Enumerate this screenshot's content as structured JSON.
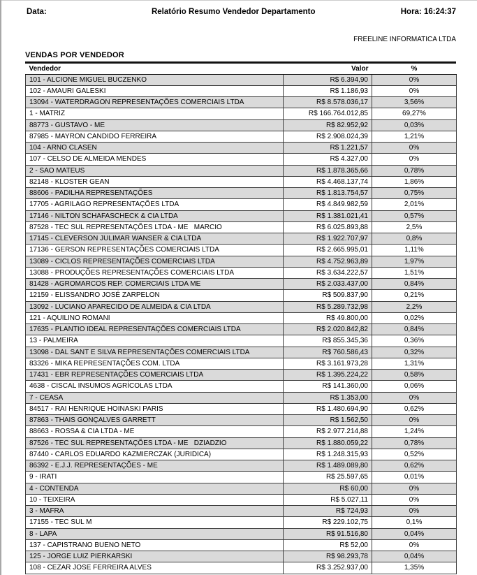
{
  "header": {
    "date_label": "Data:",
    "title": "Relatório Resumo Vendedor Departamento",
    "time": "Hora: 16:24:37",
    "company": "FREELINE INFORMATICA LTDA"
  },
  "section": {
    "title": "VENDAS POR VENDEDOR"
  },
  "table": {
    "columns": [
      "Vendedor",
      "Valor",
      "%"
    ],
    "rows": [
      [
        "101 - ALCIONE MIGUEL BUCZENKO",
        "R$ 6.394,90",
        "0%"
      ],
      [
        "102 - AMAURI GALESKI",
        "R$ 1.186,93",
        "0%"
      ],
      [
        "13094 - WATERDRAGON REPRESENTAÇÕES COMERCIAIS LTDA",
        "R$ 8.578.036,17",
        "3,56%"
      ],
      [
        "1 - MATRIZ",
        "R$ 166.764.012,85",
        "69,27%"
      ],
      [
        "88773 - GUSTAVO - ME",
        "R$ 82.952,92",
        "0,03%"
      ],
      [
        "87985 - MAYRON CANDIDO FERREIRA",
        "R$ 2.908.024,39",
        "1,21%"
      ],
      [
        "104 - ARNO CLASEN",
        "R$ 1.221,57",
        "0%"
      ],
      [
        "107 - CELSO DE ALMEIDA MENDES",
        "R$ 4.327,00",
        "0%"
      ],
      [
        "2 - SAO MATEUS",
        "R$ 1.878.365,66",
        "0,78%"
      ],
      [
        "82148 - KLOSTER GEAN",
        "R$ 4.468.137,74",
        "1,86%"
      ],
      [
        "88606 - PADILHA REPRESENTAÇÕES",
        "R$ 1.813.754,57",
        "0,75%"
      ],
      [
        "17705 - AGRILAGO REPRESENTAÇÕES LTDA",
        "R$ 4.849.982,59",
        "2,01%"
      ],
      [
        "17146 - NILTON SCHAFASCHECK & CIA LTDA",
        "R$ 1.381.021,41",
        "0,57%"
      ],
      [
        "87528 - TEC SUL REPRESENTAÇÕES LTDA - ME   MARCIO",
        "R$ 6.025.893,88",
        "2,5%"
      ],
      [
        "17145 - CLEVERSON JULIMAR WANSER & CIA LTDA",
        "R$ 1.922.707,97",
        "0,8%"
      ],
      [
        "17136 - GERSON REPRESENTAÇÕES COMERCIAIS LTDA",
        "R$ 2.665.995,01",
        "1,11%"
      ],
      [
        "13089 - CICLOS REPRESENTAÇÕES COMERCIAIS LTDA",
        "R$ 4.752.963,89",
        "1,97%"
      ],
      [
        "13088 - PRODUÇÕES REPRESENTAÇÕES COMERCIAIS LTDA",
        "R$ 3.634.222,57",
        "1,51%"
      ],
      [
        "81428 - AGROMARCOS REP. COMERCIAIS LTDA ME",
        "R$ 2.033.437,00",
        "0,84%"
      ],
      [
        "12159 - ELISSANDRO JOSÉ ZARPELON",
        "R$ 509.837,90",
        "0,21%"
      ],
      [
        "13092 - LUCIANO APARECIDO DE ALMEIDA & CIA LTDA",
        "R$ 5.289.732,98",
        "2,2%"
      ],
      [
        "121 - AQUILINO ROMANI",
        "R$ 49.800,00",
        "0,02%"
      ],
      [
        "17635 - PLANTIO IDEAL REPRESENTAÇÕES COMERCIAIS LTDA",
        "R$ 2.020.842,82",
        "0,84%"
      ],
      [
        "13 - PALMEIRA",
        "R$ 855.345,36",
        "0,36%"
      ],
      [
        "13098 - DAL SANT E SILVA REPRESENTAÇÕES COMERCIAIS LTDA",
        "R$ 760.586,43",
        "0,32%"
      ],
      [
        "83326 - MIKA REPRESENTAÇÕES COM. LTDA",
        "R$ 3.161.973,28",
        "1,31%"
      ],
      [
        "17431 - EBR REPRESENTAÇÕES COMERCIAIS LTDA",
        "R$ 1.395.224,22",
        "0,58%"
      ],
      [
        "4638 - CISCAL INSUMOS AGRÍCOLAS LTDA",
        "R$ 141.360,00",
        "0,06%"
      ],
      [
        "7 - CEASA",
        "R$ 1.353,00",
        "0%"
      ],
      [
        "84517 - RAI HENRIQUE HOINASKI PARIS",
        "R$ 1.480.694,90",
        "0,62%"
      ],
      [
        "87863 - THAIS GONÇALVES GARRETT",
        "R$ 1.562,50",
        "0%"
      ],
      [
        "88663 - ROSSA & CIA LTDA - ME",
        "R$ 2.977.214,88",
        "1,24%"
      ],
      [
        "87526 - TEC SUL REPRESENTAÇÕES LTDA - ME   DZIADZIO",
        "R$ 1.880.059,22",
        "0,78%"
      ],
      [
        "87440 - CARLOS EDUARDO KAZMIERCZAK (JURIDICA)",
        "R$ 1.248.315,93",
        "0,52%"
      ],
      [
        "86392 - E.J.J. REPRESENTAÇÕES - ME",
        "R$ 1.489.089,80",
        "0,62%"
      ],
      [
        "9 - IRATI",
        "R$ 25.597,65",
        "0,01%"
      ],
      [
        "4 - CONTENDA",
        "R$ 60,00",
        "0%"
      ],
      [
        "10 - TEIXEIRA",
        "R$ 5.027,11",
        "0%"
      ],
      [
        "3 - MAFRA",
        "R$ 724,93",
        "0%"
      ],
      [
        "17155 - TEC SUL M",
        "R$ 229.102,75",
        "0,1%"
      ],
      [
        "8 - LAPA",
        "R$ 91.516,80",
        "0,04%"
      ],
      [
        "137 - CAPISTRANO BUENO NETO",
        "R$ 52,00",
        "0%"
      ],
      [
        "125 - JORGE LUIZ PIERKARSKI",
        "R$ 98.293,78",
        "0,04%"
      ],
      [
        "108 - CEZAR JOSE FERREIRA ALVES",
        "R$ 3.252.937,00",
        "1,35%"
      ]
    ]
  },
  "colors": {
    "row_stripe": "#dadada",
    "grid_border": "#3d3d3d",
    "rule": "#111111"
  }
}
